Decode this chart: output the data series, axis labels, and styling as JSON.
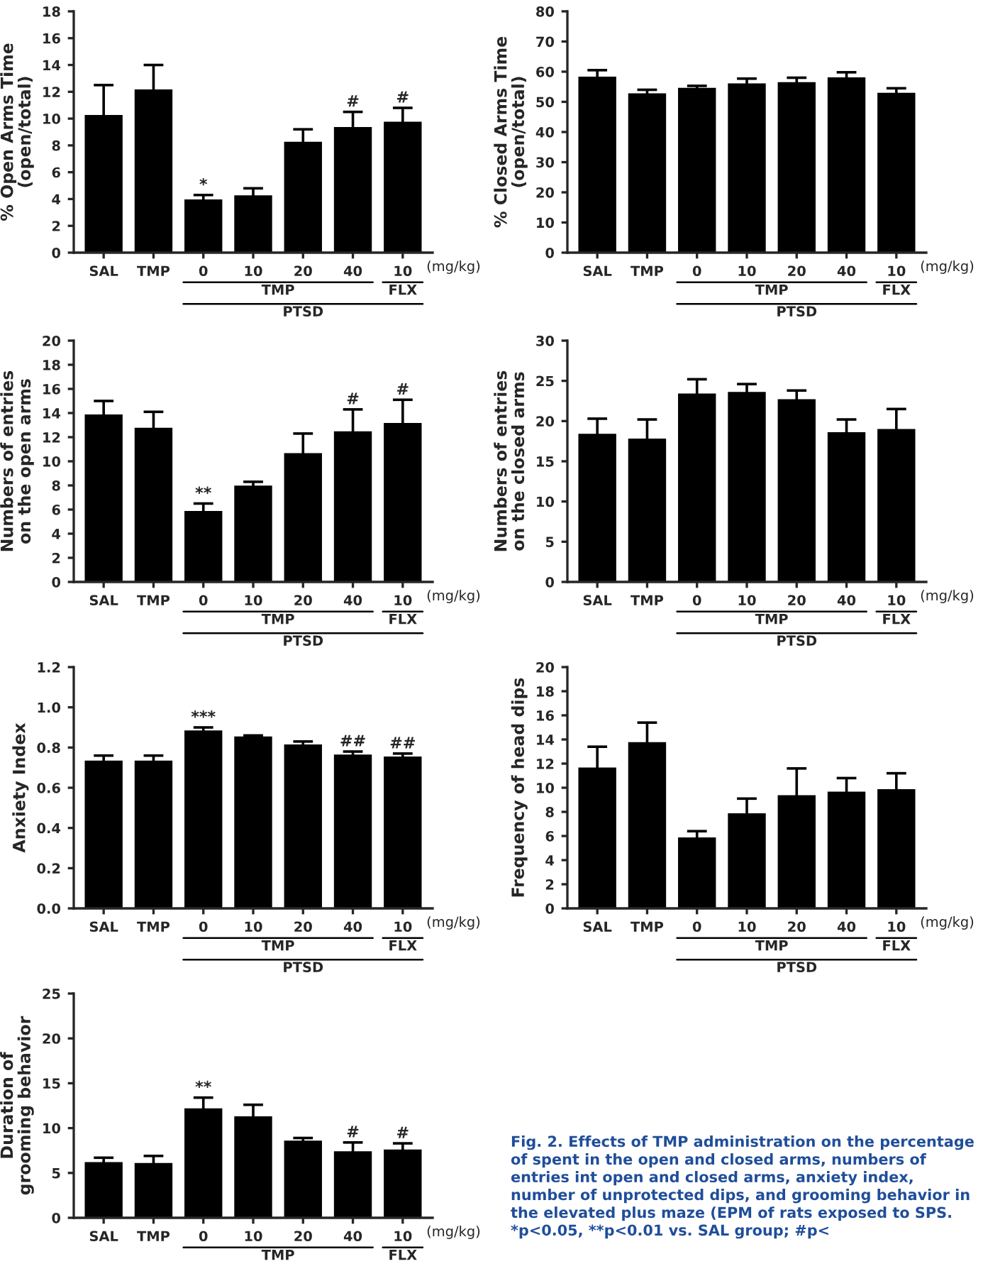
{
  "chart_data": [
    {
      "type": "bar",
      "ylabel": "% Open Arms Time\n(open/total)",
      "categories": [
        "SAL",
        "TMP",
        "0",
        "10",
        "20",
        "40",
        "10"
      ],
      "color": "#000000",
      "values": [
        10.2,
        12.1,
        3.9,
        4.2,
        8.2,
        9.3,
        9.7
      ],
      "errors": [
        2.3,
        1.9,
        0.4,
        0.6,
        1.0,
        1.2,
        1.1
      ],
      "value_labels": [
        null,
        null,
        "*",
        null,
        null,
        "#",
        "#"
      ],
      "ylim": [
        0,
        18
      ],
      "yticks": [
        0,
        2,
        4,
        6,
        8,
        10,
        12,
        14,
        16,
        18
      ],
      "annotations": [
        "(mg/kg)",
        "TMP",
        "FLX",
        "PTSD"
      ]
    },
    {
      "type": "bar",
      "ylabel": "% Closed Arms Time\n(open/total)",
      "categories": [
        "SAL",
        "TMP",
        "0",
        "10",
        "20",
        "40",
        "10"
      ],
      "color": "#000000",
      "values": [
        58,
        52.5,
        54.3,
        55.8,
        56.2,
        57.8,
        52.7
      ],
      "errors": [
        2.5,
        1.5,
        1,
        1.9,
        1.8,
        2,
        1.8
      ],
      "ylim": [
        0,
        80
      ],
      "yticks": [
        0,
        10,
        20,
        30,
        40,
        50,
        60,
        70,
        80
      ],
      "annotations": [
        "(mg/kg)",
        "TMP",
        "FLX",
        "PTSD"
      ]
    },
    {
      "type": "bar",
      "ylabel": "Numbers of entries\non the open arms",
      "categories": [
        "SAL",
        "TMP",
        "0",
        "10",
        "20",
        "40",
        "10"
      ],
      "color": "#000000",
      "values": [
        13.8,
        12.7,
        5.8,
        7.9,
        10.6,
        12.4,
        13.1
      ],
      "errors": [
        1.2,
        1.4,
        0.7,
        0.4,
        1.7,
        1.9,
        2.0
      ],
      "value_labels": [
        null,
        null,
        "**",
        null,
        null,
        "#",
        "#"
      ],
      "ylim": [
        0,
        20
      ],
      "yticks": [
        0,
        2,
        4,
        6,
        8,
        10,
        12,
        14,
        16,
        18,
        20
      ],
      "annotations": [
        "(mg/kg)",
        "TMP",
        "FLX",
        "PTSD"
      ]
    },
    {
      "type": "bar",
      "ylabel": "Numbers of entries\non the closed arms",
      "categories": [
        "SAL",
        "TMP",
        "0",
        "10",
        "20",
        "40",
        "10"
      ],
      "color": "#000000",
      "values": [
        18.3,
        17.7,
        23.3,
        23.5,
        22.6,
        18.5,
        18.9
      ],
      "errors": [
        2.0,
        2.5,
        1.9,
        1.1,
        1.2,
        1.7,
        2.6
      ],
      "ylim": [
        0,
        30
      ],
      "yticks": [
        0,
        5,
        10,
        15,
        20,
        25,
        30
      ],
      "annotations": [
        "(mg/kg)",
        "TMP",
        "FLX",
        "PTSD"
      ]
    },
    {
      "type": "bar",
      "ylabel": "Anxiety Index",
      "categories": [
        "SAL",
        "TMP",
        "0",
        "10",
        "20",
        "40",
        "10"
      ],
      "color": "#000000",
      "values": [
        0.73,
        0.73,
        0.88,
        0.85,
        0.81,
        0.76,
        0.75
      ],
      "errors": [
        0.03,
        0.03,
        0.02,
        0.01,
        0.02,
        0.02,
        0.02
      ],
      "value_labels": [
        null,
        null,
        "***",
        null,
        null,
        "##",
        "##"
      ],
      "ylim": [
        0,
        1.2
      ],
      "yticks": [
        {
          "value": 0,
          "label": "0.0"
        },
        0.2,
        0.4,
        0.6,
        0.8,
        {
          "value": 1,
          "label": "1.0"
        },
        1.2
      ],
      "annotations": [
        "(mg/kg)",
        "TMP",
        "FLX",
        "PTSD"
      ]
    },
    {
      "type": "bar",
      "ylabel": "Frequency of head dips",
      "categories": [
        "SAL",
        "TMP",
        "0",
        "10",
        "20",
        "40",
        "10"
      ],
      "color": "#000000",
      "values": [
        11.6,
        13.7,
        5.8,
        7.8,
        9.3,
        9.6,
        9.8
      ],
      "errors": [
        1.8,
        1.7,
        0.6,
        1.3,
        2.3,
        1.2,
        1.4
      ],
      "ylim": [
        0,
        20
      ],
      "yticks": [
        0,
        2,
        4,
        6,
        8,
        10,
        12,
        14,
        16,
        18,
        20
      ],
      "annotations": [
        "(mg/kg)",
        "TMP",
        "FLX",
        "PTSD"
      ]
    },
    {
      "type": "bar",
      "ylabel": "Duration of\ngrooming behavior",
      "categories": [
        "SAL",
        "TMP",
        "0",
        "10",
        "20",
        "40",
        "10"
      ],
      "color": "#000000",
      "values": [
        6.1,
        6.0,
        12.1,
        11.2,
        8.5,
        7.3,
        7.5
      ],
      "errors": [
        0.6,
        0.9,
        1.3,
        1.4,
        0.4,
        1.1,
        0.8
      ],
      "value_labels": [
        null,
        null,
        "**",
        null,
        null,
        "#",
        "#"
      ],
      "ylim": [
        0,
        25
      ],
      "yticks": [
        0,
        5,
        10,
        15,
        20,
        25
      ],
      "annotations": [
        "(mg/kg)",
        "TMP",
        "FLX"
      ]
    },
    {
      "type": "other",
      "annotations": [
        "Fig. 2. Effects of TMP administration on the percentage of spent in the open and closed arms, numbers of entries int open and closed arms, anxiety index, number of unprotected dips, and grooming behavior in the elevated plus maze (EPM of rats exposed to SPS. *p<0.05, **p<0.01 vs. SAL group; #p<"
      ]
    }
  ]
}
